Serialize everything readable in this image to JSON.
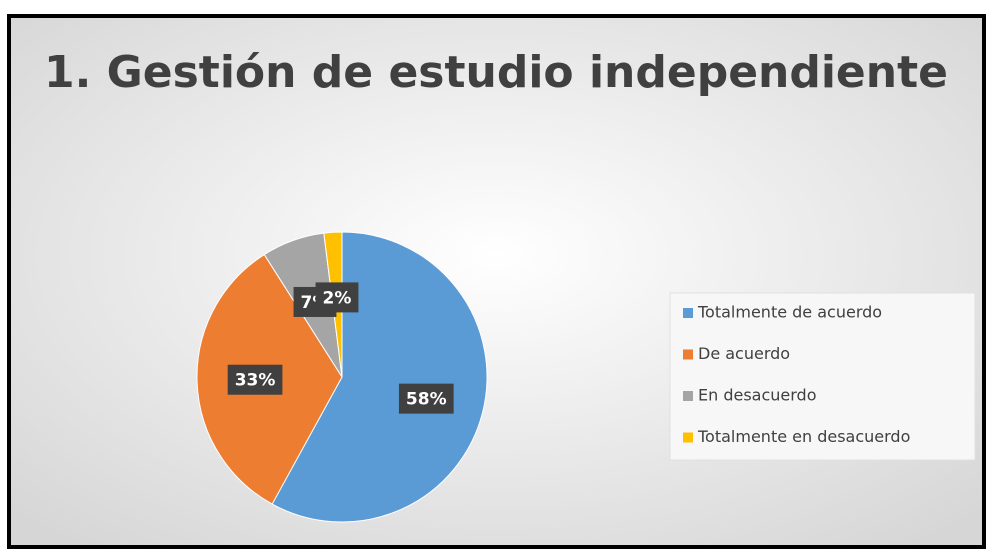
{
  "chart_data": {
    "type": "pie",
    "title": "1. Gestión de estudio independiente",
    "categories": [
      "Totalmente de acuerdo",
      "De acuerdo",
      "En desacuerdo",
      "Totalmente en desacuerdo"
    ],
    "values": [
      58,
      33,
      7,
      2
    ],
    "value_labels": [
      "58%",
      "33%",
      "7%",
      "2%"
    ],
    "colors": [
      "#5b9bd5",
      "#ed7d31",
      "#a5a5a5",
      "#ffc000"
    ],
    "legend": "right"
  }
}
